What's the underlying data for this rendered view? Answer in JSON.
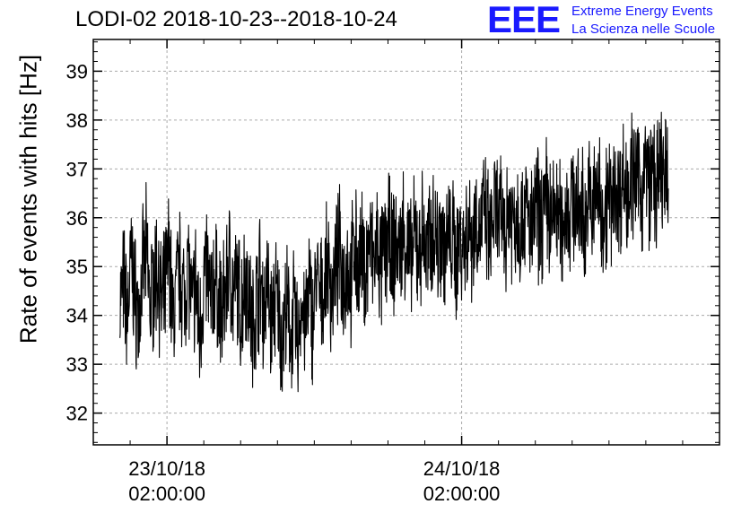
{
  "chart_data": {
    "type": "line",
    "title": "LODI-02 2018-10-23--2018-10-24",
    "xlabel": "",
    "ylabel": "Rate of events with hits [Hz]",
    "ylim": [
      31.35,
      39.65
    ],
    "yticks": [
      32,
      33,
      34,
      35,
      36,
      37,
      38,
      39
    ],
    "ytick_labels": [
      "32",
      "33",
      "34",
      "35",
      "36",
      "37",
      "38",
      "39"
    ],
    "xlim": [
      "2018-10-22 20:00",
      "2018-10-24 23:00"
    ],
    "xticks": [
      {
        "time": "2018-10-23 02:00",
        "date_label": "23/10/18",
        "time_label": "02:00:00"
      },
      {
        "time": "2018-10-24 02:00",
        "date_label": "24/10/18",
        "time_label": "02:00:00"
      }
    ],
    "grid": true,
    "series": [
      {
        "color": "#000000",
        "x_start": "2018-10-22 22:10",
        "x_end": "2018-10-24 18:50",
        "values": [
          34.3,
          34.6,
          34.0,
          35.1,
          34.4,
          33.9,
          34.8,
          35.3,
          34.2,
          34.7,
          35.0,
          34.1,
          34.5,
          35.4,
          33.8,
          34.6,
          34.9,
          34.3,
          35.2,
          34.0,
          34.7,
          33.6,
          34.5,
          35.0,
          34.2,
          34.8,
          34.4,
          33.9,
          34.6,
          35.1,
          34.3,
          34.7,
          34.0,
          34.9,
          34.5,
          33.7,
          34.2,
          34.8,
          34.1,
          34.6,
          33.8,
          34.4,
          34.0,
          33.5,
          34.2,
          33.6,
          34.0,
          33.4,
          34.3,
          33.7,
          34.5,
          33.9,
          34.8,
          34.2,
          34.6,
          35.0,
          34.4,
          34.9,
          35.3,
          34.7,
          35.1,
          34.6,
          35.5,
          34.9,
          35.2,
          34.8,
          35.6,
          35.0,
          35.4,
          34.9,
          35.3,
          35.7,
          35.1,
          35.5,
          35.2,
          35.8,
          35.4,
          35.0,
          35.6,
          35.3,
          35.7,
          35.2,
          35.5,
          35.9,
          35.4,
          35.8,
          35.3,
          35.6,
          35.5,
          35.1,
          35.7,
          35.4,
          35.9,
          35.6,
          36.0,
          35.7,
          36.1,
          35.8,
          35.5,
          36.2,
          35.9,
          36.0,
          35.7,
          36.3,
          35.9,
          36.1,
          35.8,
          36.2,
          36.0,
          35.6,
          36.3,
          35.9,
          36.1,
          36.4,
          35.8,
          36.2,
          36.0,
          35.7,
          36.3,
          36.1,
          36.5,
          36.0,
          36.2,
          35.9,
          36.4,
          36.1,
          36.6,
          36.3,
          36.0,
          36.5,
          36.2,
          36.7,
          36.4,
          36.8,
          36.5,
          37.0,
          36.6,
          36.9,
          36.4,
          37.1,
          36.7,
          36.9,
          36.5,
          37.0,
          36.8,
          36.6
        ]
      }
    ]
  },
  "header": {
    "title": "LODI-02 2018-10-23--2018-10-24",
    "logo_text": "EEE",
    "logo_line1": "Extreme Energy Events",
    "logo_line2": "La Scienza nelle Scuole"
  }
}
